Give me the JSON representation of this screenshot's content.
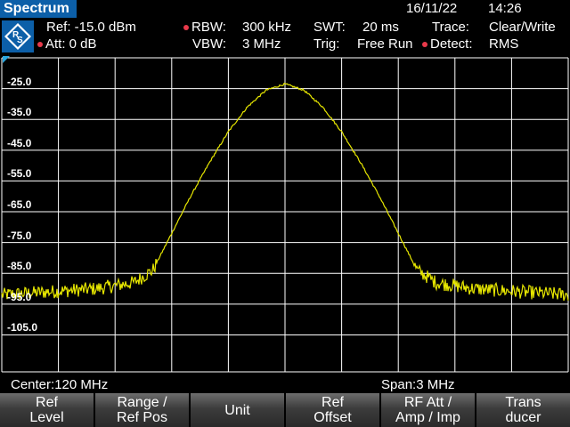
{
  "header": {
    "title": "Spectrum",
    "date": "16/11/22",
    "time": "14:26"
  },
  "settings": {
    "ref": "Ref: -15.0 dBm",
    "att": "Att: 0 dB",
    "rbw": "RBW:",
    "rbw_value": "300 kHz",
    "vbw": "VBW:",
    "vbw_value": "3 MHz",
    "swt": "SWT:",
    "swt_value": "20 ms",
    "trig": "Trig:",
    "trig_value": "Free Run",
    "trace": "Trace:",
    "trace_value": "Clear/Write",
    "detect": "Detect:",
    "detect_value": "RMS"
  },
  "colors": {
    "title_bg": "#0c5fa8",
    "trace": "#e6e600",
    "grid": "#ffffff",
    "marker_dot": "#e8394a",
    "softkey_top": "#6d6d6d",
    "softkey_bottom": "#2a2a2a"
  },
  "chart_data": {
    "type": "line",
    "y_tick_labels": [
      "-25.0",
      "-35.0",
      "-45.0",
      "-55.0",
      "-65.0",
      "-75.0",
      "-85.0",
      "-95.0",
      "-105.0"
    ],
    "ylim": [
      -117,
      -15
    ],
    "grid": true,
    "x_divisions": 10,
    "series": [
      {
        "x": [
          118.5,
          119.0,
          119.2,
          119.3,
          119.4,
          119.5,
          119.6,
          119.7,
          119.8,
          119.9,
          120.0,
          120.1,
          120.2,
          120.3,
          120.4,
          120.5,
          120.6,
          120.7,
          120.8,
          121.0,
          121.5
        ],
        "values": [
          -92.0,
          -90.0,
          -88.0,
          -84.0,
          -72.0,
          -60.0,
          -49.0,
          -39.0,
          -31.0,
          -25.5,
          -23.5,
          -25.5,
          -31.0,
          -39.0,
          -49.0,
          -60.0,
          -72.0,
          -84.0,
          -88.0,
          -90.0,
          -92.0
        ]
      }
    ]
  },
  "footer": {
    "center": "Center:120 MHz",
    "span": "Span:3 MHz"
  },
  "softkeys": [
    {
      "line1": "Ref",
      "line2": "Level"
    },
    {
      "line1": "Range /",
      "line2": "Ref Pos"
    },
    {
      "line1": "Unit",
      "line2": ""
    },
    {
      "line1": "Ref",
      "line2": "Offset"
    },
    {
      "line1": "RF Att /",
      "line2": "Amp / Imp"
    },
    {
      "line1": "Trans",
      "line2": "ducer"
    }
  ]
}
